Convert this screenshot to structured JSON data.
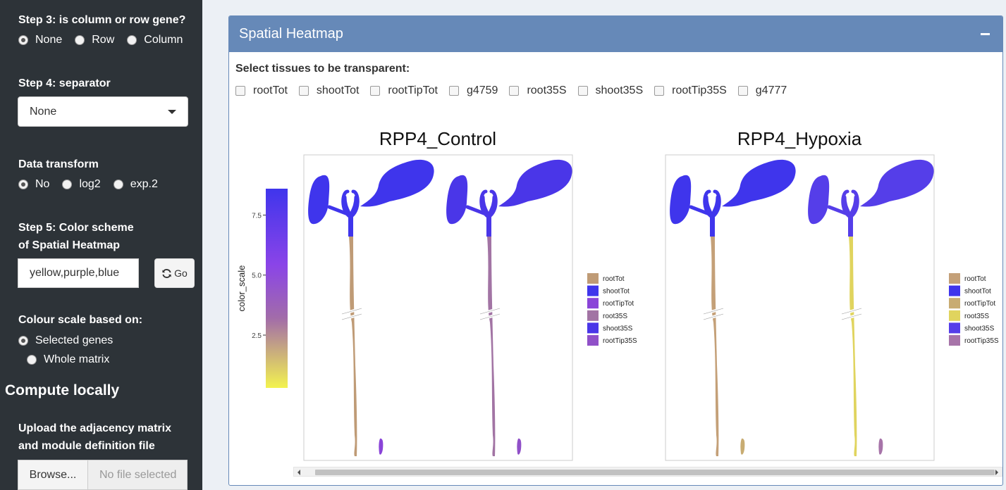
{
  "sidebar": {
    "step3": {
      "label": "Step 3: is column or row gene?",
      "options": [
        "None",
        "Row",
        "Column"
      ],
      "selected": "None"
    },
    "step4": {
      "label": "Step 4: separator",
      "value": "None"
    },
    "transform": {
      "label": "Data transform",
      "options": [
        "No",
        "log2",
        "exp.2"
      ],
      "selected": "No"
    },
    "step5": {
      "label_line1": "Step 5: Color scheme",
      "label_line2": "of Spatial Heatmap",
      "value": "yellow,purple,blue",
      "go_label": "Go"
    },
    "colour_scale": {
      "label": "Colour scale based on:",
      "options": [
        "Selected genes",
        "Whole matrix"
      ],
      "selected": "Selected genes"
    },
    "compute": {
      "title": "Compute locally",
      "upload_line1": "Upload the adjacency matrix",
      "upload_line2": "and module definition file",
      "browse_label": "Browse...",
      "file_placeholder": "No file selected"
    }
  },
  "box": {
    "title": "Spatial Heatmap",
    "transparent_label": "Select tissues to be transparent:",
    "tissues": [
      "rootTot",
      "shootTot",
      "rootTipTot",
      "g4759",
      "root35S",
      "shoot35S",
      "rootTip35S",
      "g4777"
    ]
  },
  "colors": {
    "header": "#6689b8",
    "sidebar": "#2d3338"
  },
  "chart_data": {
    "type": "heatmap",
    "color_key": {
      "label": "color_scale",
      "ticks": [
        2.5,
        5.0,
        7.5
      ],
      "range": [
        0.3,
        8.6
      ],
      "colors": [
        "#f3f34f",
        "#a26ca9",
        "#8a44e8",
        "#3f35ec"
      ]
    },
    "panels": [
      {
        "title": "RPP4_Control",
        "legend": [
          {
            "name": "rootTot",
            "color": "#bf9b76"
          },
          {
            "name": "shootTot",
            "color": "#3f35ec"
          },
          {
            "name": "rootTipTot",
            "color": "#8a44d8"
          },
          {
            "name": "root35S",
            "color": "#a274a4"
          },
          {
            "name": "shoot35S",
            "color": "#4a36e8"
          },
          {
            "name": "rootTip35S",
            "color": "#9050c8"
          }
        ],
        "plants": [
          {
            "shoot": "#3f35ec",
            "root": "#bf9b76",
            "tip": "#8a44d8"
          },
          {
            "shoot": "#4a36e8",
            "root": "#a274a4",
            "tip": "#9050c8"
          }
        ]
      },
      {
        "title": "RPP4_Hypoxia",
        "legend": [
          {
            "name": "rootTot",
            "color": "#c4a078"
          },
          {
            "name": "shootTot",
            "color": "#3f35ec"
          },
          {
            "name": "rootTipTot",
            "color": "#c8ac72"
          },
          {
            "name": "root35S",
            "color": "#e0d45e"
          },
          {
            "name": "shoot35S",
            "color": "#553ee9"
          },
          {
            "name": "rootTip35S",
            "color": "#a774a9"
          }
        ],
        "plants": [
          {
            "shoot": "#3f35ec",
            "root": "#c4a078",
            "tip": "#c8ac72"
          },
          {
            "shoot": "#553ee9",
            "root": "#e0d45e",
            "tip": "#a774a9"
          }
        ]
      }
    ]
  }
}
